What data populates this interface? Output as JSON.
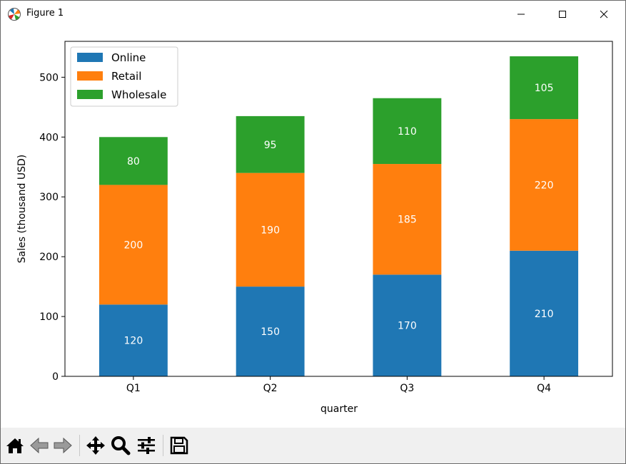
{
  "window": {
    "title": "Figure 1",
    "icons": {
      "app": "matplotlib-logo-icon",
      "minimize": "minimize-icon",
      "maximize": "maximize-icon",
      "close": "close-icon"
    }
  },
  "toolbar": {
    "buttons": [
      {
        "name": "home-icon",
        "tooltip": "Home"
      },
      {
        "name": "back-arrow-icon",
        "tooltip": "Back"
      },
      {
        "name": "forward-arrow-icon",
        "tooltip": "Forward"
      },
      {
        "name": "pan-move-icon",
        "tooltip": "Pan"
      },
      {
        "name": "zoom-magnifier-icon",
        "tooltip": "Zoom"
      },
      {
        "name": "configure-subplots-icon",
        "tooltip": "Subplots"
      },
      {
        "name": "save-floppy-icon",
        "tooltip": "Save"
      }
    ]
  },
  "chart_data": {
    "type": "bar",
    "stacked": true,
    "categories": [
      "Q1",
      "Q2",
      "Q3",
      "Q4"
    ],
    "series": [
      {
        "name": "Online",
        "values": [
          120,
          150,
          170,
          210
        ],
        "color": "#1f77b4"
      },
      {
        "name": "Retail",
        "values": [
          200,
          190,
          185,
          220
        ],
        "color": "#ff7f0e"
      },
      {
        "name": "Wholesale",
        "values": [
          80,
          95,
          110,
          105
        ],
        "color": "#2ca02c"
      }
    ],
    "xlabel": "quarter",
    "ylabel": "Sales (thousand USD)",
    "ylim": [
      0,
      560
    ],
    "yticks": [
      0,
      100,
      200,
      300,
      400,
      500
    ],
    "legend": "top-left",
    "grid": false,
    "data_labels": true,
    "label_color": "#ffffff"
  }
}
